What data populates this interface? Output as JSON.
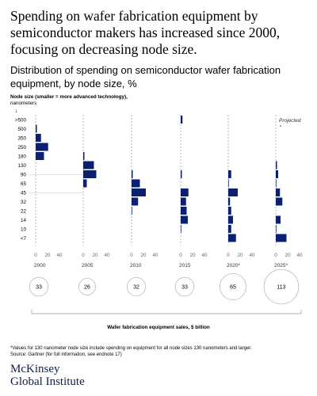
{
  "headline": "Spending on wafer fabrication equipment by semiconductor makers has increased since 2000, focusing on decreasing node size.",
  "subtitle": "Distribution of spending on semiconductor wafer fabrication equipment, by node size,",
  "subtitle_unit": "%",
  "node_axis_title": "Node size (smaller = more advanced technology),",
  "node_axis_unit": "nanometers",
  "node_axis_arrow": "↓",
  "projected_label": "Projected",
  "sales_caption": "Wafer fabrication equipment sales, $ billion",
  "footnote_1": "*Values for 130 nanometer node size include spending on equipment for all node sizes 130 nanometers and larger.",
  "footnote_2": "Source: Gartner (for full information, see endnote 17)",
  "logo_line1": "McKinsey",
  "logo_line2": "Global Institute",
  "colors": {
    "bar": "#0b1f73",
    "axis": "#999999",
    "circle": "#bbbbbb",
    "text": "#000000"
  },
  "chart_data": {
    "type": "bar",
    "orientation": "horizontal",
    "small_multiples": true,
    "categories": [
      ">500",
      "500",
      "350",
      "250",
      "180",
      "130",
      "90",
      "65",
      "45",
      "32",
      "22",
      "14",
      "10",
      "<7"
    ],
    "xlim": [
      0,
      40
    ],
    "xticks": [
      "0",
      "20",
      "40"
    ],
    "grid": false,
    "series": [
      {
        "name": "2000",
        "values": [
          0,
          2,
          9,
          21,
          14,
          0,
          0,
          0,
          0,
          0,
          0,
          0,
          0,
          0
        ]
      },
      {
        "name": "2005",
        "values": [
          0,
          0,
          0,
          0,
          2,
          18,
          22,
          6,
          0,
          0,
          0,
          0,
          0,
          0
        ]
      },
      {
        "name": "2010",
        "values": [
          0,
          0,
          0,
          0,
          0,
          0,
          2,
          14,
          24,
          11,
          1,
          0,
          0,
          0
        ]
      },
      {
        "name": "2015",
        "values": [
          3,
          0,
          0,
          0,
          0,
          0,
          2,
          0,
          13,
          9,
          10,
          12,
          1,
          0
        ]
      },
      {
        "name": "2020*",
        "values": [
          0,
          0,
          0,
          0,
          0,
          0,
          5,
          1,
          16,
          3,
          5,
          8,
          5,
          13
        ]
      },
      {
        "name": "2025*",
        "values": [
          0,
          0,
          0,
          0,
          0,
          2,
          4,
          1,
          7,
          11,
          0,
          8,
          1,
          18
        ]
      }
    ],
    "sales": [
      {
        "year": "2000",
        "value": 33
      },
      {
        "year": "2005",
        "value": 26
      },
      {
        "year": "2010",
        "value": 32
      },
      {
        "year": "2015",
        "value": 33
      },
      {
        "year": "2020*",
        "value": 65
      },
      {
        "year": "2025*",
        "value": 113
      }
    ]
  }
}
